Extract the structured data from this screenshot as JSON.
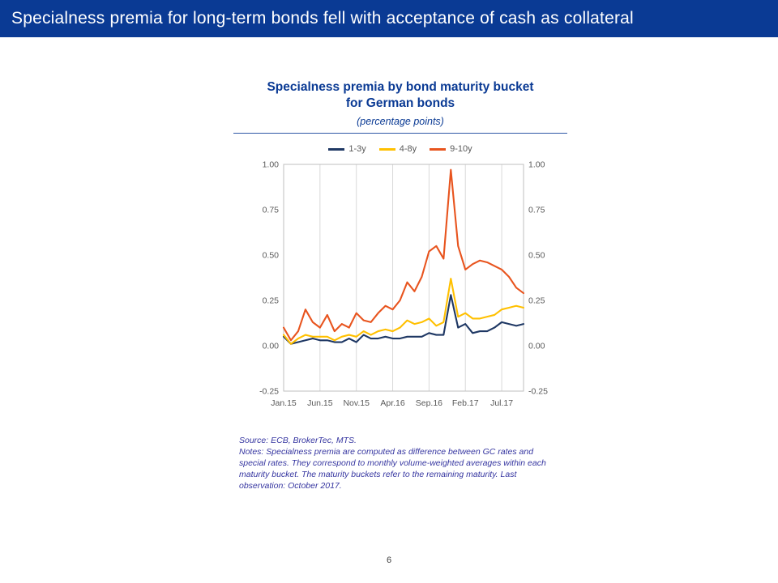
{
  "colors": {
    "header_bg": "#0a3a94",
    "brand_blue": "#0a3a94",
    "notes_blue": "#3535a0",
    "axis_text": "#595959",
    "gridline": "#d9d9d9",
    "plot_border": "#bfbfbf"
  },
  "header": {
    "title": "Specialness premia for long-term bonds fell with acceptance of cash as collateral"
  },
  "chart": {
    "title_line1": "Specialness premia by bond maturity bucket",
    "title_line2": "for German bonds",
    "subtitle": "(percentage points)",
    "notes": "Source: ECB, BrokerTec, MTS.\nNotes: Specialness premia are computed as difference between GC rates and\nspecial rates. They correspond to monthly volume-weighted averages within each\nmaturity bucket. The maturity buckets refer to the remaining maturity. Last\nobservation: October 2017."
  },
  "footer": {
    "page_number": "6"
  },
  "chart_data": {
    "type": "line",
    "title": "Specialness premia by bond maturity bucket for German bonds",
    "subtitle": "(percentage points)",
    "x": [
      "Jan.15",
      "Feb.15",
      "Mar.15",
      "Apr.15",
      "May.15",
      "Jun.15",
      "Jul.15",
      "Aug.15",
      "Sep.15",
      "Oct.15",
      "Nov.15",
      "Dec.15",
      "Jan.16",
      "Feb.16",
      "Mar.16",
      "Apr.16",
      "May.16",
      "Jun.16",
      "Jul.16",
      "Aug.16",
      "Sep.16",
      "Oct.16",
      "Nov.16",
      "Dec.16",
      "Jan.17",
      "Feb.17",
      "Mar.17",
      "Apr.17",
      "May.17",
      "Jun.17",
      "Jul.17",
      "Aug.17",
      "Sep.17",
      "Oct.17"
    ],
    "x_tick_positions": [
      0,
      5,
      10,
      15,
      20,
      25,
      30
    ],
    "x_tick_labels": [
      "Jan.15",
      "Jun.15",
      "Nov.15",
      "Apr.16",
      "Sep.16",
      "Feb.17",
      "Jul.17"
    ],
    "ylim": [
      -0.25,
      1.0
    ],
    "yticks": [
      1.0,
      0.75,
      0.5,
      0.25,
      0.0,
      -0.25
    ],
    "ytick_labels": [
      "1.00",
      "0.75",
      "0.50",
      "0.25",
      "0.00",
      "-0.25"
    ],
    "grid": "vertical",
    "legend_position": "top",
    "series": [
      {
        "name": "1-3y",
        "color": "#1f3864",
        "values": [
          0.05,
          0.01,
          0.02,
          0.03,
          0.04,
          0.03,
          0.03,
          0.02,
          0.02,
          0.04,
          0.02,
          0.06,
          0.04,
          0.04,
          0.05,
          0.04,
          0.04,
          0.05,
          0.05,
          0.05,
          0.07,
          0.06,
          0.06,
          0.28,
          0.1,
          0.12,
          0.07,
          0.08,
          0.08,
          0.1,
          0.13,
          0.12,
          0.11,
          0.12
        ]
      },
      {
        "name": "4-8y",
        "color": "#ffc000",
        "values": [
          0.06,
          0.01,
          0.04,
          0.06,
          0.05,
          0.05,
          0.05,
          0.03,
          0.05,
          0.06,
          0.05,
          0.08,
          0.06,
          0.08,
          0.09,
          0.08,
          0.1,
          0.14,
          0.12,
          0.13,
          0.15,
          0.11,
          0.13,
          0.37,
          0.16,
          0.18,
          0.15,
          0.15,
          0.16,
          0.17,
          0.2,
          0.21,
          0.22,
          0.21
        ]
      },
      {
        "name": "9-10y",
        "color": "#e8541e",
        "values": [
          0.1,
          0.03,
          0.08,
          0.2,
          0.13,
          0.1,
          0.17,
          0.08,
          0.12,
          0.1,
          0.18,
          0.14,
          0.13,
          0.18,
          0.22,
          0.2,
          0.25,
          0.35,
          0.3,
          0.38,
          0.52,
          0.55,
          0.48,
          0.97,
          0.55,
          0.42,
          0.45,
          0.47,
          0.46,
          0.44,
          0.42,
          0.38,
          0.32,
          0.29
        ]
      }
    ]
  }
}
